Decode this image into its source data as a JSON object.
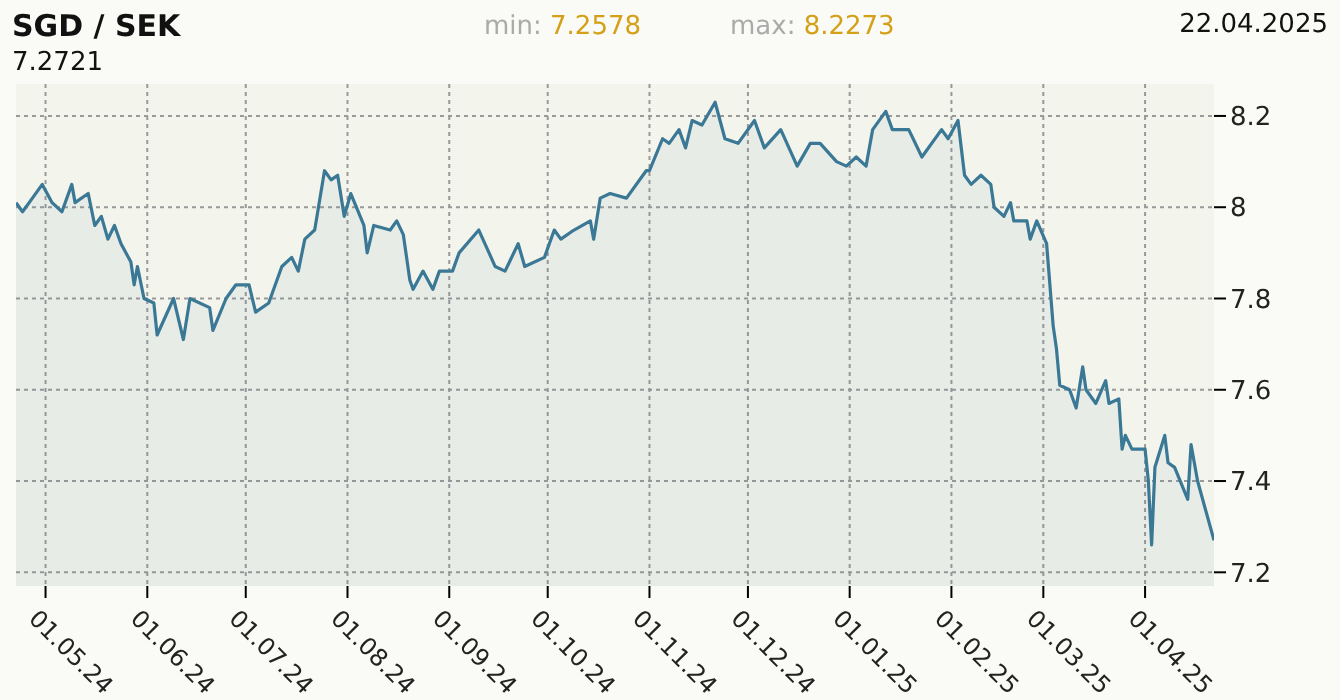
{
  "chart_data": {
    "type": "area",
    "title": "SGD / SEK",
    "annotations": [
      "min: 7.2578",
      "max: 8.2273",
      "22.04.2025",
      "7.2721"
    ],
    "color": "#3a7895",
    "grid": true,
    "xlim": [
      "2024-04-22",
      "2025-04-22"
    ],
    "ylim": [
      7.17,
      8.27
    ],
    "yticks": [
      7.2,
      7.4,
      7.6,
      7.8,
      8,
      8.2
    ],
    "xticks": [
      {
        "value": "2024-05-01",
        "label": "01.05.24"
      },
      {
        "value": "2024-06-01",
        "label": "01.06.24"
      },
      {
        "value": "2024-07-01",
        "label": "01.07.24"
      },
      {
        "value": "2024-08-01",
        "label": "01.08.24"
      },
      {
        "value": "2024-09-01",
        "label": "01.09.24"
      },
      {
        "value": "2024-10-01",
        "label": "01.10.24"
      },
      {
        "value": "2024-11-01",
        "label": "01.11.24"
      },
      {
        "value": "2024-12-01",
        "label": "01.12.24"
      },
      {
        "value": "2025-01-01",
        "label": "01.01.25"
      },
      {
        "value": "2025-02-01",
        "label": "01.02.25"
      },
      {
        "value": "2025-03-01",
        "label": "01.03.25"
      },
      {
        "value": "2025-04-01",
        "label": "01.04.25"
      }
    ],
    "x": [
      "2024-04-22",
      "2024-04-24",
      "2024-04-27",
      "2024-04-30",
      "2024-05-03",
      "2024-05-06",
      "2024-05-09",
      "2024-05-10",
      "2024-05-14",
      "2024-05-16",
      "2024-05-18",
      "2024-05-20",
      "2024-05-22",
      "2024-05-24",
      "2024-05-27",
      "2024-05-28",
      "2024-05-29",
      "2024-05-31",
      "2024-06-03",
      "2024-06-04",
      "2024-06-09",
      "2024-06-12",
      "2024-06-14",
      "2024-06-20",
      "2024-06-21",
      "2024-06-25",
      "2024-06-28",
      "2024-07-02",
      "2024-07-04",
      "2024-07-08",
      "2024-07-12",
      "2024-07-15",
      "2024-07-17",
      "2024-07-19",
      "2024-07-22",
      "2024-07-25",
      "2024-07-27",
      "2024-07-29",
      "2024-07-31",
      "2024-08-02",
      "2024-08-06",
      "2024-08-07",
      "2024-08-09",
      "2024-08-14",
      "2024-08-16",
      "2024-08-18",
      "2024-08-20",
      "2024-08-21",
      "2024-08-24",
      "2024-08-27",
      "2024-08-29",
      "2024-09-02",
      "2024-09-04",
      "2024-09-10",
      "2024-09-15",
      "2024-09-18",
      "2024-09-22",
      "2024-09-24",
      "2024-09-30",
      "2024-10-03",
      "2024-10-05",
      "2024-10-09",
      "2024-10-14",
      "2024-10-15",
      "2024-10-17",
      "2024-10-20",
      "2024-10-25",
      "2024-10-31",
      "2024-11-01",
      "2024-11-05",
      "2024-11-07",
      "2024-11-10",
      "2024-11-12",
      "2024-11-14",
      "2024-11-17",
      "2024-11-21",
      "2024-11-24",
      "2024-11-28",
      "2024-12-03",
      "2024-12-06",
      "2024-12-11",
      "2024-12-16",
      "2024-12-20",
      "2024-12-23",
      "2024-12-28",
      "2024-12-31",
      "2025-01-03",
      "2025-01-06",
      "2025-01-08",
      "2025-01-12",
      "2025-01-14",
      "2025-01-19",
      "2025-01-23",
      "2025-01-29",
      "2025-01-31",
      "2025-02-03",
      "2025-02-05",
      "2025-02-07",
      "2025-02-10",
      "2025-02-13",
      "2025-02-14",
      "2025-02-17",
      "2025-02-19",
      "2025-02-20",
      "2025-02-24",
      "2025-02-25",
      "2025-02-27",
      "2025-03-02",
      "2025-03-04",
      "2025-03-05",
      "2025-03-06",
      "2025-03-09",
      "2025-03-11",
      "2025-03-13",
      "2025-03-14",
      "2025-03-17",
      "2025-03-20",
      "2025-03-21",
      "2025-03-24",
      "2025-03-25",
      "2025-03-26",
      "2025-03-28",
      "2025-04-01",
      "2025-04-02",
      "2025-04-03",
      "2025-04-04",
      "2025-04-07",
      "2025-04-08",
      "2025-04-10",
      "2025-04-14",
      "2025-04-15",
      "2025-04-17",
      "2025-04-22"
    ],
    "values": [
      8.01,
      7.99,
      8.02,
      8.05,
      8.01,
      7.99,
      8.05,
      8.01,
      8.03,
      7.96,
      7.98,
      7.93,
      7.96,
      7.92,
      7.88,
      7.83,
      7.87,
      7.8,
      7.79,
      7.72,
      7.8,
      7.71,
      7.8,
      7.78,
      7.73,
      7.8,
      7.83,
      7.83,
      7.77,
      7.79,
      7.87,
      7.89,
      7.86,
      7.93,
      7.95,
      8.08,
      8.06,
      8.07,
      7.98,
      8.03,
      7.96,
      7.9,
      7.96,
      7.95,
      7.97,
      7.94,
      7.84,
      7.82,
      7.86,
      7.82,
      7.86,
      7.86,
      7.9,
      7.95,
      7.87,
      7.86,
      7.92,
      7.87,
      7.89,
      7.95,
      7.93,
      7.95,
      7.97,
      7.93,
      8.02,
      8.03,
      8.02,
      8.08,
      8.08,
      8.15,
      8.14,
      8.17,
      8.13,
      8.19,
      8.18,
      8.23,
      8.15,
      8.14,
      8.19,
      8.13,
      8.17,
      8.09,
      8.14,
      8.14,
      8.1,
      8.09,
      8.11,
      8.09,
      8.17,
      8.21,
      8.17,
      8.17,
      8.11,
      8.17,
      8.15,
      8.19,
      8.07,
      8.05,
      8.07,
      8.05,
      8.0,
      7.98,
      8.01,
      7.97,
      7.97,
      7.93,
      7.97,
      7.92,
      7.74,
      7.69,
      7.61,
      7.6,
      7.56,
      7.65,
      7.6,
      7.57,
      7.62,
      7.57,
      7.58,
      7.47,
      7.5,
      7.47,
      7.47,
      7.4,
      7.26,
      7.43,
      7.5,
      7.44,
      7.43,
      7.36,
      7.48,
      7.4,
      7.27
    ]
  }
}
